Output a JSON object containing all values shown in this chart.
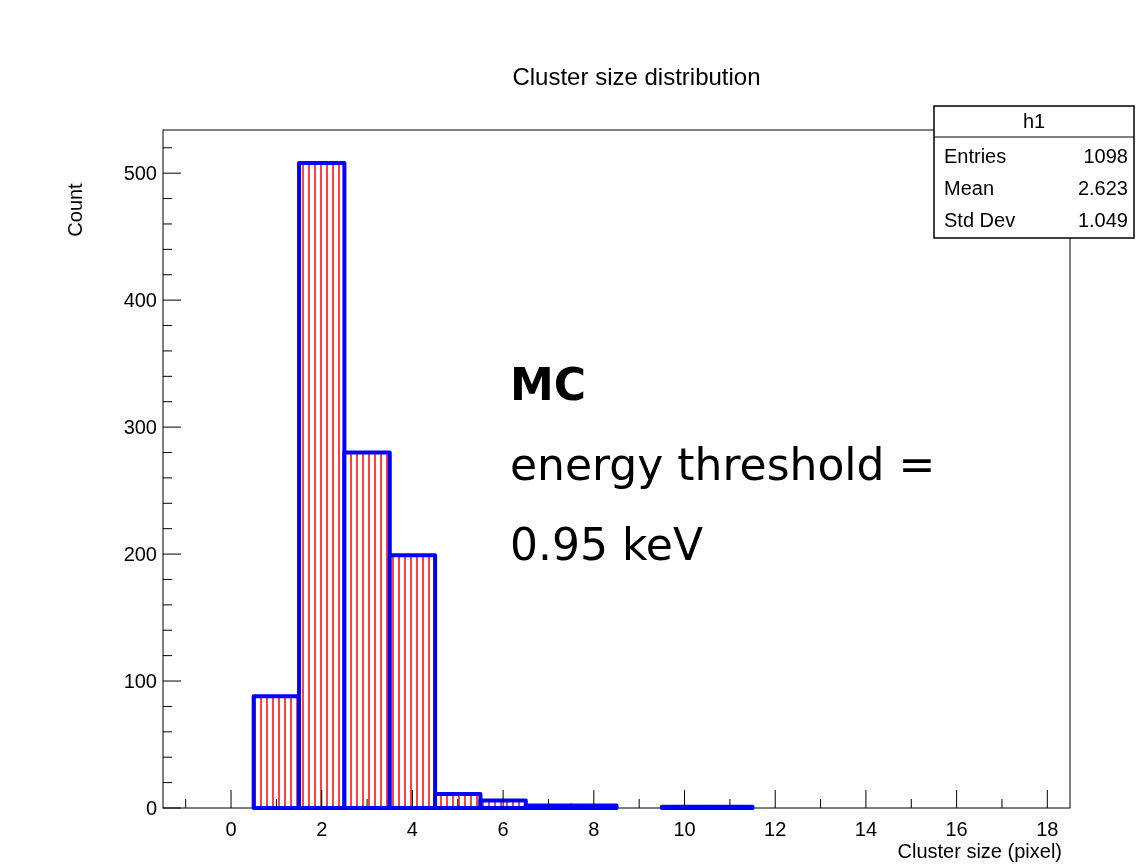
{
  "chart_data": {
    "type": "histogram",
    "title": "Cluster size distribution",
    "xlabel": "Cluster size (pixel)",
    "ylabel": "Count",
    "bins": [
      -1.5,
      -0.5,
      0.5,
      1.5,
      2.5,
      3.5,
      4.5,
      5.5,
      6.5,
      7.5,
      8.5,
      9.5,
      10.5,
      11.5,
      12.5,
      13.5,
      14.5,
      15.5,
      16.5,
      17.5,
      18.5
    ],
    "values": [
      0,
      0,
      88,
      508,
      280,
      199,
      11,
      6,
      2,
      2,
      0,
      1,
      1,
      0,
      0,
      0,
      0,
      0,
      0,
      0
    ],
    "color": "#0000ff",
    "xlim": [
      -1.5,
      18.5
    ],
    "xticks": [
      {
        "value": -1,
        "label": null
      },
      0,
      {
        "value": 1,
        "label": null
      },
      2,
      {
        "value": 3,
        "label": null
      },
      4,
      {
        "value": 5,
        "label": null
      },
      6,
      {
        "value": 7,
        "label": null
      },
      8,
      {
        "value": 9,
        "label": null
      },
      10,
      {
        "value": 11,
        "label": null
      },
      12,
      {
        "value": 13,
        "label": null
      },
      14,
      {
        "value": 15,
        "label": null
      },
      16,
      {
        "value": 17,
        "label": null
      },
      18
    ],
    "ylim": [
      0,
      534
    ],
    "yticks": [
      0,
      {
        "value": 20,
        "label": null
      },
      {
        "value": 40,
        "label": null
      },
      {
        "value": 60,
        "label": null
      },
      {
        "value": 80,
        "label": null
      },
      100,
      {
        "value": 120,
        "label": null
      },
      {
        "value": 140,
        "label": null
      },
      {
        "value": 160,
        "label": null
      },
      {
        "value": 180,
        "label": null
      },
      200,
      {
        "value": 220,
        "label": null
      },
      {
        "value": 240,
        "label": null
      },
      {
        "value": 260,
        "label": null
      },
      {
        "value": 280,
        "label": null
      },
      300,
      {
        "value": 320,
        "label": null
      },
      {
        "value": 340,
        "label": null
      },
      {
        "value": 360,
        "label": null
      },
      {
        "value": 380,
        "label": null
      },
      400,
      {
        "value": 420,
        "label": null
      },
      {
        "value": 440,
        "label": null
      },
      {
        "value": 460,
        "label": null
      },
      {
        "value": 480,
        "label": null
      },
      500,
      {
        "value": 520,
        "label": null
      }
    ],
    "annotations": [
      "h1",
      "Entries",
      "1098",
      "Mean",
      "2.623",
      "Std Dev",
      "1.049",
      "MC",
      "energy threshold =",
      "0.95 keV"
    ]
  }
}
